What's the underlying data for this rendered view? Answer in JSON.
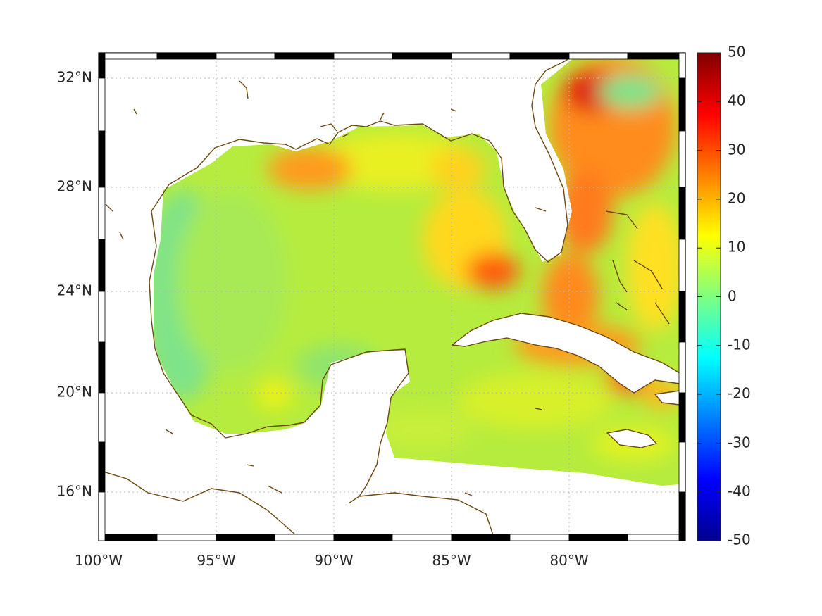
{
  "map": {
    "x_ticks": [
      "100°W",
      "95°W",
      "90°W",
      "85°W",
      "80°W"
    ],
    "y_ticks": [
      "32°N",
      "28°N",
      "24°N",
      "20°N",
      "16°N"
    ],
    "lon_range": [
      -100,
      -75.2
    ],
    "lat_range": [
      14.2,
      33
    ]
  },
  "colorbar": {
    "ticks": [
      "50",
      "40",
      "30",
      "20",
      "10",
      "0",
      "-10",
      "-20",
      "-30",
      "-40",
      "-50"
    ],
    "range": [
      -50,
      50
    ],
    "colormap": "jet"
  },
  "colors": {
    "coastline": "#6b4a12",
    "frame": "#000000"
  }
}
